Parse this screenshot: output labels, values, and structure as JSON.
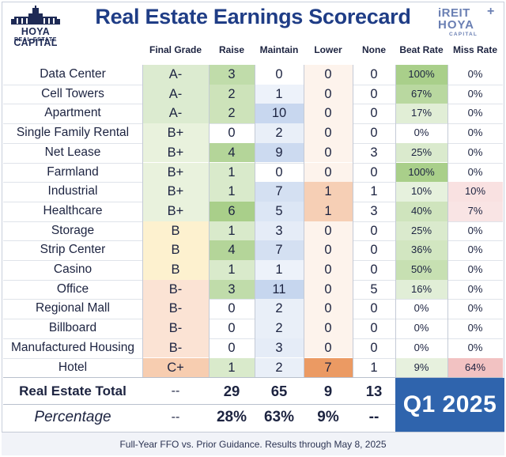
{
  "header": {
    "title": "Real Estate Earnings Scorecard",
    "logo_left_line1": "HOYA CAPITAL",
    "logo_left_line2": "REAL ESTATE",
    "logo_right_line1": "iREIT",
    "logo_right_plus": "+",
    "logo_right_line2": "HOYA",
    "logo_right_line3": "CAPITAL"
  },
  "colors": {
    "grade_a": "#dcebd0",
    "grade_b_plus": "#e9f2dd",
    "grade_b": "#fdf1cf",
    "grade_b_minus": "#fbe3d4",
    "grade_c_plus": "#f7cdb0",
    "raise_high": "#a9cf8a",
    "maintain_tint": "#e3ebf7",
    "lower_high": "#eb9a63",
    "miss_high": "#f2c2c2",
    "q_box": "#2f64ad"
  },
  "chart_data": {
    "type": "table",
    "title": "Real Estate Earnings Scorecard",
    "columns": [
      "Final Grade",
      "Raise",
      "Maintain",
      "Lower",
      "None",
      "Beat Rate",
      "Miss Rate"
    ],
    "rows": [
      {
        "sector": "Data Center",
        "grade": "A-",
        "raise": "3",
        "maintain": "0",
        "lower": "0",
        "none": "0",
        "beat": "100%",
        "miss": "0%"
      },
      {
        "sector": "Cell Towers",
        "grade": "A-",
        "raise": "2",
        "maintain": "1",
        "lower": "0",
        "none": "0",
        "beat": "67%",
        "miss": "0%"
      },
      {
        "sector": "Apartment",
        "grade": "A-",
        "raise": "2",
        "maintain": "10",
        "lower": "0",
        "none": "0",
        "beat": "17%",
        "miss": "0%"
      },
      {
        "sector": "Single Family Rental",
        "grade": "B+",
        "raise": "0",
        "maintain": "2",
        "lower": "0",
        "none": "0",
        "beat": "0%",
        "miss": "0%"
      },
      {
        "sector": "Net Lease",
        "grade": "B+",
        "raise": "4",
        "maintain": "9",
        "lower": "0",
        "none": "3",
        "beat": "25%",
        "miss": "0%"
      },
      {
        "sector": "Farmland",
        "grade": "B+",
        "raise": "1",
        "maintain": "0",
        "lower": "0",
        "none": "0",
        "beat": "100%",
        "miss": "0%"
      },
      {
        "sector": "Industrial",
        "grade": "B+",
        "raise": "1",
        "maintain": "7",
        "lower": "1",
        "none": "1",
        "beat": "10%",
        "miss": "10%"
      },
      {
        "sector": "Healthcare",
        "grade": "B+",
        "raise": "6",
        "maintain": "5",
        "lower": "1",
        "none": "3",
        "beat": "40%",
        "miss": "7%"
      },
      {
        "sector": "Storage",
        "grade": "B",
        "raise": "1",
        "maintain": "3",
        "lower": "0",
        "none": "0",
        "beat": "25%",
        "miss": "0%"
      },
      {
        "sector": "Strip Center",
        "grade": "B",
        "raise": "4",
        "maintain": "7",
        "lower": "0",
        "none": "0",
        "beat": "36%",
        "miss": "0%"
      },
      {
        "sector": "Casino",
        "grade": "B",
        "raise": "1",
        "maintain": "1",
        "lower": "0",
        "none": "0",
        "beat": "50%",
        "miss": "0%"
      },
      {
        "sector": "Office",
        "grade": "B-",
        "raise": "3",
        "maintain": "11",
        "lower": "0",
        "none": "5",
        "beat": "16%",
        "miss": "0%"
      },
      {
        "sector": "Regional Mall",
        "grade": "B-",
        "raise": "0",
        "maintain": "2",
        "lower": "0",
        "none": "0",
        "beat": "0%",
        "miss": "0%"
      },
      {
        "sector": "Billboard",
        "grade": "B-",
        "raise": "0",
        "maintain": "2",
        "lower": "0",
        "none": "0",
        "beat": "0%",
        "miss": "0%"
      },
      {
        "sector": "Manufactured Housing",
        "grade": "B-",
        "raise": "0",
        "maintain": "3",
        "lower": "0",
        "none": "0",
        "beat": "0%",
        "miss": "0%"
      },
      {
        "sector": "Hotel",
        "grade": "C+",
        "raise": "1",
        "maintain": "2",
        "lower": "7",
        "none": "1",
        "beat": "9%",
        "miss": "64%"
      }
    ],
    "total": {
      "label": "Real Estate Total",
      "grade": "--",
      "raise": "29",
      "maintain": "65",
      "lower": "9",
      "none": "13"
    },
    "percentage": {
      "label": "Percentage",
      "grade": "--",
      "raise": "28%",
      "maintain": "63%",
      "lower": "9%",
      "none": "--"
    },
    "period": "Q1 2025"
  },
  "footer": {
    "note": "Full-Year FFO vs. Prior Guidance. Results through May 8, 2025"
  }
}
